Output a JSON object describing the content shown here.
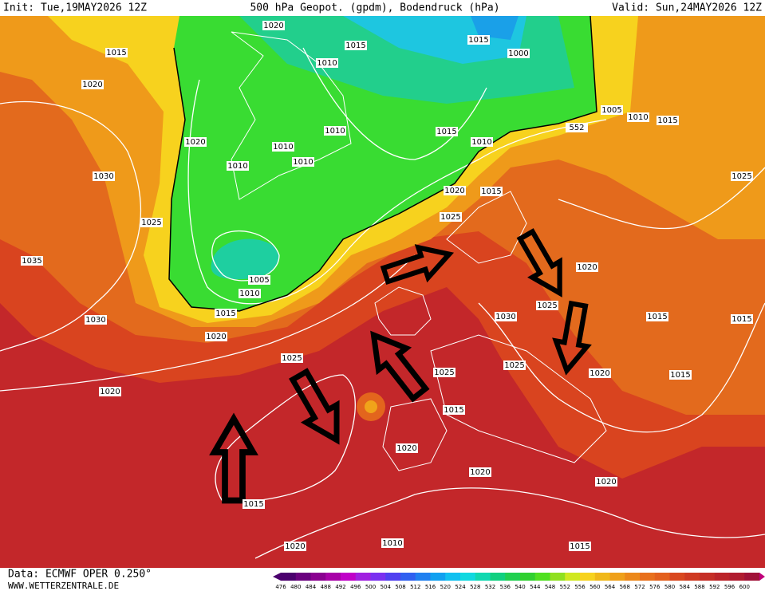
{
  "header": {
    "init": "Init: Tue,19MAY2026 12Z",
    "title": "500 hPa Geopot. (gpdm), Bodendruck (hPa)",
    "valid": "Valid: Sun,24MAY2026 12Z"
  },
  "isobar_labels": [
    "1020",
    "1015",
    "1015",
    "1000",
    "1010",
    "1015",
    "1020",
    "1005",
    "1010",
    "1015",
    "1010",
    "1010",
    "1010",
    "1010",
    "1015",
    "1010",
    "1020",
    "1020",
    "1015",
    "1020",
    "1030",
    "1025",
    "1035",
    "1005",
    "1010",
    "1015",
    "1020",
    "1030",
    "1025",
    "1025",
    "1030",
    "1025",
    "1025",
    "1020",
    "1025",
    "1020",
    "1020",
    "1015",
    "1020",
    "1020",
    "1015",
    "1020",
    "1010",
    "1015",
    "1015",
    "1015",
    "1025",
    "552",
    "1015"
  ],
  "footer": {
    "source": "Data: ECMWF OPER 0.250°",
    "site": "WWW.WETTERZENTRALE.DE"
  },
  "colorbar": {
    "levels": [
      476,
      480,
      484,
      488,
      492,
      496,
      500,
      504,
      508,
      512,
      516,
      520,
      524,
      528,
      532,
      536,
      540,
      544,
      548,
      552,
      556,
      560,
      564,
      568,
      572,
      576,
      580,
      584,
      588,
      592,
      596,
      600
    ]
  }
}
